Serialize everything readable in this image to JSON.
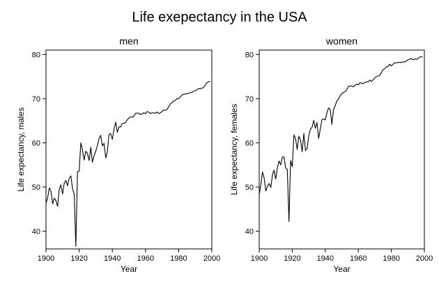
{
  "figure": {
    "title": "Life exepectancy in the USA"
  },
  "chart_data": [
    {
      "type": "line",
      "title": "men",
      "xlabel": "Year",
      "ylabel": "Life expectancy, males",
      "xlim": [
        1900,
        2000
      ],
      "ylim": [
        36,
        81
      ],
      "xticks": [
        1900,
        1920,
        1940,
        1960,
        1980,
        2000
      ],
      "yticks": [
        40,
        50,
        60,
        70,
        80
      ],
      "grid": false,
      "series": [
        {
          "x": [
            1900,
            1901,
            1902,
            1903,
            1904,
            1905,
            1906,
            1907,
            1908,
            1909,
            1910,
            1911,
            1912,
            1913,
            1914,
            1915,
            1916,
            1917,
            1918,
            1919,
            1920,
            1921,
            1922,
            1923,
            1924,
            1925,
            1926,
            1927,
            1928,
            1929,
            1930,
            1931,
            1932,
            1933,
            1934,
            1935,
            1936,
            1937,
            1938,
            1939,
            1940,
            1941,
            1942,
            1943,
            1944,
            1945,
            1946,
            1947,
            1948,
            1949,
            1950,
            1951,
            1952,
            1953,
            1954,
            1955,
            1956,
            1957,
            1958,
            1959,
            1960,
            1961,
            1962,
            1963,
            1964,
            1965,
            1966,
            1967,
            1968,
            1969,
            1970,
            1971,
            1972,
            1973,
            1974,
            1975,
            1976,
            1977,
            1978,
            1979,
            1980,
            1981,
            1982,
            1983,
            1984,
            1985,
            1986,
            1987,
            1988,
            1989,
            1990,
            1991,
            1992,
            1993,
            1994,
            1995,
            1996,
            1997,
            1998,
            1999
          ],
          "y": [
            46.3,
            47.6,
            49.8,
            49.1,
            46.2,
            47.5,
            46.9,
            45.6,
            49.5,
            50.5,
            48.4,
            50.9,
            51.5,
            50.3,
            52.0,
            52.5,
            49.6,
            48.4,
            36.6,
            53.5,
            53.6,
            60.0,
            58.4,
            56.1,
            58.1,
            57.6,
            56.0,
            59.0,
            55.6,
            57.1,
            58.1,
            59.4,
            61.0,
            61.7,
            59.3,
            59.9,
            56.6,
            58.0,
            61.9,
            62.1,
            60.8,
            63.1,
            64.7,
            62.4,
            63.6,
            63.6,
            64.4,
            64.4,
            64.6,
            65.2,
            65.6,
            65.9,
            65.8,
            66.0,
            66.7,
            66.7,
            66.7,
            66.4,
            66.6,
            66.8,
            66.6,
            67.1,
            66.9,
            66.6,
            66.8,
            66.8,
            66.7,
            67.0,
            66.6,
            66.8,
            67.1,
            67.4,
            67.4,
            67.6,
            68.2,
            68.8,
            69.1,
            69.5,
            69.6,
            70.0,
            70.0,
            70.4,
            70.8,
            71.0,
            71.1,
            71.1,
            71.2,
            71.4,
            71.4,
            71.7,
            71.8,
            72.0,
            72.3,
            72.2,
            72.4,
            72.5,
            73.1,
            73.6,
            73.8,
            73.9
          ]
        }
      ]
    },
    {
      "type": "line",
      "title": "women",
      "xlabel": "Year",
      "ylabel": "Life expectancy, females",
      "xlim": [
        1900,
        2000
      ],
      "ylim": [
        36,
        81
      ],
      "xticks": [
        1900,
        1920,
        1940,
        1960,
        1980,
        2000
      ],
      "yticks": [
        40,
        50,
        60,
        70,
        80
      ],
      "grid": false,
      "series": [
        {
          "x": [
            1900,
            1901,
            1902,
            1903,
            1904,
            1905,
            1906,
            1907,
            1908,
            1909,
            1910,
            1911,
            1912,
            1913,
            1914,
            1915,
            1916,
            1917,
            1918,
            1919,
            1920,
            1921,
            1922,
            1923,
            1924,
            1925,
            1926,
            1927,
            1928,
            1929,
            1930,
            1931,
            1932,
            1933,
            1934,
            1935,
            1936,
            1937,
            1938,
            1939,
            1940,
            1941,
            1942,
            1943,
            1944,
            1945,
            1946,
            1947,
            1948,
            1949,
            1950,
            1951,
            1952,
            1953,
            1954,
            1955,
            1956,
            1957,
            1958,
            1959,
            1960,
            1961,
            1962,
            1963,
            1964,
            1965,
            1966,
            1967,
            1968,
            1969,
            1970,
            1971,
            1972,
            1973,
            1974,
            1975,
            1976,
            1977,
            1978,
            1979,
            1980,
            1981,
            1982,
            1983,
            1984,
            1985,
            1986,
            1987,
            1988,
            1989,
            1990,
            1991,
            1992,
            1993,
            1994,
            1995,
            1996,
            1997,
            1998,
            1999
          ],
          "y": [
            48.3,
            50.6,
            53.4,
            52.0,
            49.1,
            50.2,
            50.8,
            49.9,
            52.8,
            53.8,
            51.8,
            54.4,
            55.9,
            55.0,
            56.8,
            56.8,
            54.3,
            54.0,
            42.2,
            56.0,
            54.6,
            61.8,
            61.0,
            58.5,
            61.5,
            60.6,
            58.0,
            62.1,
            58.3,
            58.7,
            61.6,
            63.1,
            63.5,
            65.1,
            63.3,
            64.6,
            61.0,
            63.2,
            65.3,
            65.4,
            65.2,
            66.8,
            67.9,
            67.5,
            64.2,
            67.5,
            68.4,
            69.5,
            69.9,
            70.7,
            71.1,
            71.4,
            71.6,
            72.0,
            72.8,
            72.8,
            72.9,
            72.7,
            73.0,
            73.3,
            73.1,
            73.6,
            73.5,
            73.4,
            73.7,
            73.8,
            73.8,
            74.2,
            73.9,
            74.3,
            74.7,
            75.0,
            75.1,
            75.3,
            75.9,
            76.6,
            76.8,
            77.2,
            77.3,
            77.8,
            77.4,
            77.8,
            78.1,
            78.1,
            78.2,
            78.2,
            78.2,
            78.3,
            78.3,
            78.5,
            78.8,
            78.9,
            79.1,
            78.8,
            79.0,
            78.9,
            79.0,
            79.4,
            79.5,
            79.4
          ]
        }
      ]
    }
  ]
}
